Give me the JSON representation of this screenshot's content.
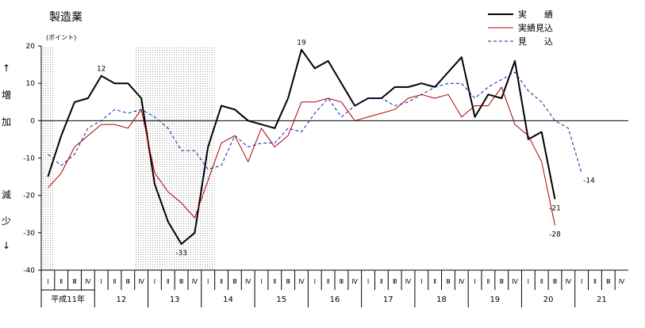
{
  "chart_data": {
    "type": "line",
    "title": "製造業",
    "ylabel_unit": "(ポイント)",
    "side_label_up": [
      "↑",
      "増",
      "加"
    ],
    "side_label_down": [
      "減",
      "少",
      "↓"
    ],
    "ylim": [
      -40,
      20
    ],
    "yticks": [
      20,
      10,
      0,
      -10,
      -20,
      -30,
      -40
    ],
    "grid": false,
    "legend_position": "top-right",
    "quarter_labels": [
      "Ⅰ",
      "Ⅱ",
      "Ⅲ",
      "Ⅳ"
    ],
    "years": [
      {
        "label": "平成11年",
        "quarters": 4
      },
      {
        "label": "12",
        "quarters": 4
      },
      {
        "label": "13",
        "quarters": 4
      },
      {
        "label": "14",
        "quarters": 4
      },
      {
        "label": "15",
        "quarters": 4
      },
      {
        "label": "16",
        "quarters": 4
      },
      {
        "label": "17",
        "quarters": 4
      },
      {
        "label": "18",
        "quarters": 4
      },
      {
        "label": "19",
        "quarters": 4
      },
      {
        "label": "20",
        "quarters": 4
      },
      {
        "label": "21",
        "quarters": 4
      }
    ],
    "shaded_ranges": [
      [
        0,
        0
      ],
      [
        7,
        12
      ]
    ],
    "series": [
      {
        "name": "実　　績",
        "color": "#000000",
        "style": "solid-thick",
        "values": [
          -15,
          -4,
          5,
          6,
          12,
          10,
          10,
          6,
          -17,
          -27,
          -33,
          -30,
          -7,
          4,
          3,
          0,
          -1,
          -2,
          6,
          19,
          14,
          16,
          10,
          4,
          6,
          6,
          9,
          9,
          10,
          9,
          13,
          17,
          1,
          7,
          6,
          16,
          -5,
          -3,
          -21
        ],
        "labels": [
          {
            "index": 4,
            "text": "12",
            "pos": "above"
          },
          {
            "index": 10,
            "text": "-33",
            "pos": "below"
          },
          {
            "index": 19,
            "text": "19",
            "pos": "above"
          },
          {
            "index": 38,
            "text": "-21",
            "pos": "below"
          }
        ]
      },
      {
        "name": "実績見込",
        "color": "#aa0000",
        "style": "solid-thin",
        "values": [
          -18,
          -14,
          -7,
          -4,
          -1,
          -1,
          -2,
          3,
          -14,
          -19,
          -22,
          -26,
          -16,
          -6,
          -4,
          -11,
          -2,
          -7,
          -4,
          5,
          5,
          6,
          5,
          0,
          1,
          2,
          3,
          6,
          7,
          6,
          7,
          1,
          4,
          4,
          9,
          -1,
          -4,
          -11,
          -28
        ],
        "labels": [
          {
            "index": 38,
            "text": "-28",
            "pos": "below"
          }
        ]
      },
      {
        "name": "見　　込",
        "color": "#1a1aaa",
        "style": "dashed",
        "values": [
          -9,
          -12,
          -9,
          -2,
          0,
          3,
          2,
          3,
          1,
          -2,
          -8,
          -8,
          -13,
          -12,
          -4,
          -7,
          -6,
          -6,
          -2,
          -3,
          2,
          6,
          1,
          4,
          6,
          6,
          4,
          5,
          7,
          9,
          10,
          10,
          6,
          9,
          11,
          13,
          8,
          5,
          0,
          -2,
          -14
        ],
        "labels": [
          {
            "index": 40,
            "text": "-14",
            "pos": "below-right"
          }
        ]
      }
    ]
  }
}
